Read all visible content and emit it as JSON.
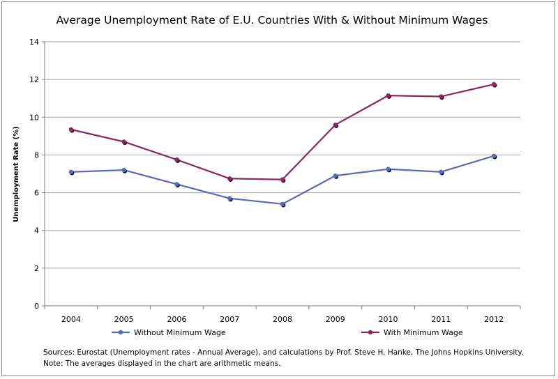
{
  "chart_data": {
    "type": "line",
    "title": "Average Unemployment Rate of E.U. Countries With & Without Minimum Wages",
    "xlabel": "",
    "ylabel": "Unemployment Rate (%)",
    "ylim": [
      0,
      14
    ],
    "yticks": [
      0,
      2,
      4,
      6,
      8,
      10,
      12,
      14
    ],
    "categories": [
      "2004",
      "2005",
      "2006",
      "2007",
      "2008",
      "2009",
      "2010",
      "2011",
      "2012"
    ],
    "grid": true,
    "legend_position": "bottom",
    "series": [
      {
        "name": "Without Minimum Wage",
        "color": "#5b6bb5",
        "values": [
          7.1,
          7.2,
          6.45,
          5.7,
          5.4,
          6.9,
          7.25,
          7.1,
          7.95
        ]
      },
      {
        "name": "With Minimum Wage",
        "color": "#8b2a5e",
        "values": [
          9.35,
          8.7,
          7.75,
          6.75,
          6.7,
          9.6,
          11.15,
          11.1,
          11.75
        ]
      }
    ]
  },
  "notes": {
    "sources": "Sources: Eurostat  (Unemployment rates - Annual Average), and calculations by Prof. Steve H. Hanke, The Johns Hopkins University.",
    "averages": "Note: The averages displayed in the chart are arithmetic means."
  }
}
